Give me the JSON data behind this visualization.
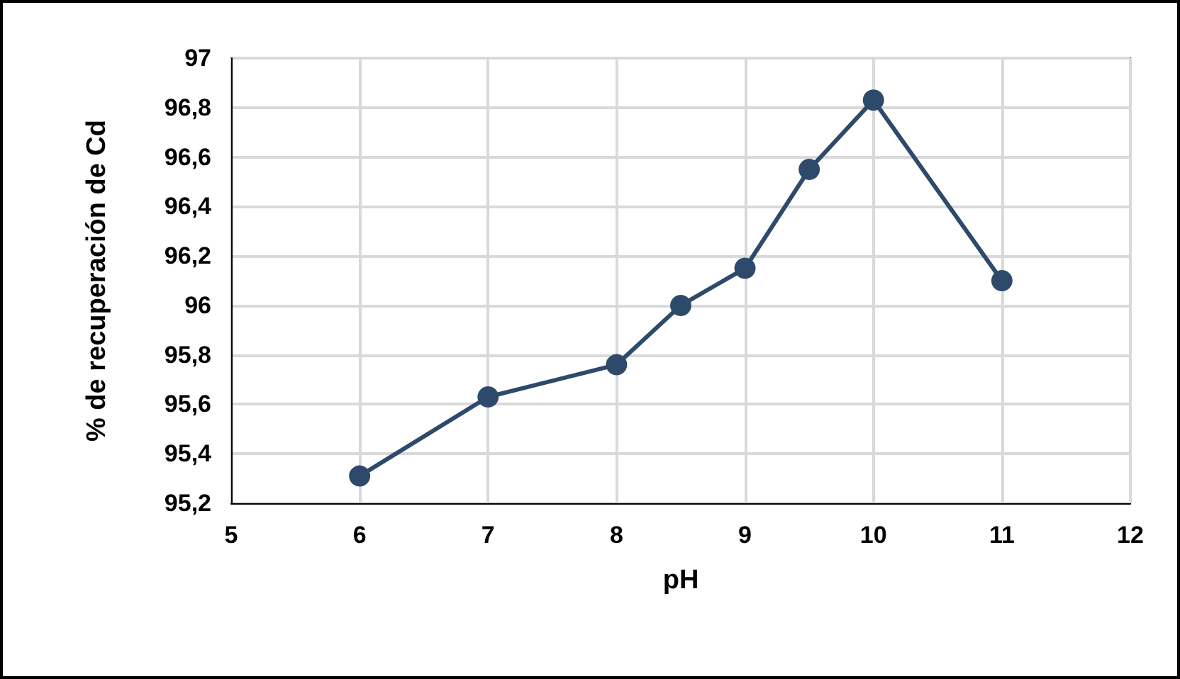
{
  "chart_data": {
    "type": "line",
    "xlabel": "pH",
    "ylabel": "% de recuperación de Cd",
    "x": [
      6,
      7,
      8,
      8.5,
      9,
      9.5,
      10,
      11
    ],
    "series": [
      {
        "color": "#2e4a6b",
        "values": [
          95.31,
          95.63,
          95.76,
          96.0,
          96.15,
          96.55,
          96.83,
          96.1
        ]
      }
    ],
    "xlim": [
      5,
      12
    ],
    "xticks": [
      5,
      6,
      7,
      8,
      9,
      10,
      11,
      12
    ],
    "ylim": [
      95.2,
      97
    ],
    "yticks": [
      {
        "value": 95.2,
        "label": "95,2"
      },
      {
        "value": 95.4,
        "label": "95,4"
      },
      {
        "value": 95.6,
        "label": "95,6"
      },
      {
        "value": 95.8,
        "label": "95,8"
      },
      {
        "value": 96,
        "label": "96"
      },
      {
        "value": 96.2,
        "label": "96,2"
      },
      {
        "value": 96.4,
        "label": "96,4"
      },
      {
        "value": 96.6,
        "label": "96,6"
      },
      {
        "value": 96.8,
        "label": "96,8"
      },
      {
        "value": 97,
        "label": "97"
      }
    ],
    "grid": true,
    "marker": "circle",
    "line_style": "solid"
  }
}
